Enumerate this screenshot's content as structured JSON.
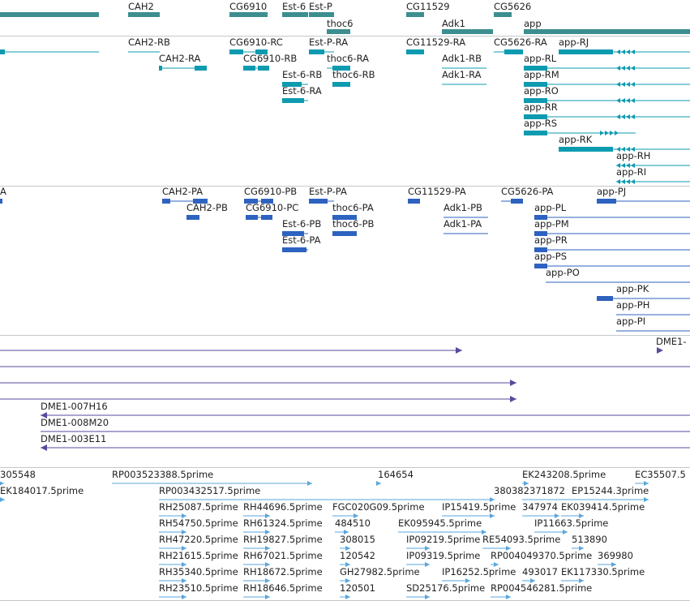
{
  "colors": {
    "gene": "#3d8e8e",
    "transcript": "#0e9bb0",
    "cds": "#2d62c0",
    "clone": "#5a4a9c",
    "est": "#5aa6dc",
    "separator": "#c4c8cc"
  },
  "tracks": {
    "genes": {
      "labels": [
        "CAH2",
        "CG6910",
        "Est-6",
        "Est-P",
        "thoc6",
        "CG11529",
        "Adk1",
        "CG5626",
        "app"
      ]
    },
    "transcripts": {
      "labels": [
        "CAH2-RB",
        "CG6910-RC",
        "Est-P-RA",
        "CG11529-RA",
        "CG5626-RA",
        "app-RJ",
        "CAH2-RA",
        "CG6910-RB",
        "thoc6-RA",
        "Adk1-RB",
        "app-RL",
        "Est-6-RB",
        "thoc6-RB",
        "Adk1-RA",
        "app-RM",
        "Est-6-RA",
        "app-RO",
        "app-RR",
        "app-RS",
        "app-RK",
        "app-RH",
        "app-RI"
      ]
    },
    "proteins": {
      "labels": [
        "A",
        "CAH2-PA",
        "CG6910-PB",
        "Est-P-PA",
        "CG11529-PA",
        "CG5626-PA",
        "app-PJ",
        "CAH2-PB",
        "CG6910-PC",
        "thoc6-PA",
        "Adk1-PB",
        "app-PL",
        "Est-6-PB",
        "thoc6-PB",
        "Adk1-PA",
        "app-PM",
        "Est-6-PA",
        "app-PR",
        "app-PS",
        "app-PO",
        "app-PK",
        "app-PH",
        "app-PI"
      ]
    },
    "clones": {
      "labels": [
        "DME1-",
        "DME1-007H16",
        "DME1-008M20",
        "DME1-003E11"
      ]
    },
    "ests": {
      "labels": [
        "305548",
        "RP003523388.5prime",
        "164654",
        "EK243208.5prime",
        "EC35507.5",
        "EK184017.5prime",
        "RP003432517.5prime",
        "380382",
        "371872",
        "EP15244.3prime",
        "RH25087.5prime",
        "RH44696.5prime",
        "FGC020G09.5prime",
        "IP15419.5prime",
        "347974",
        "EK039414.5prime",
        "RH54750.5prime",
        "RH61324.5prime",
        "484510",
        "EK095945.5prime",
        "IP11663.5prime",
        "RH47220.5prime",
        "RH19827.5prime",
        "308015",
        "IP09219.5prime",
        "RE54093.5prime",
        "513890",
        "RH21615.5prime",
        "RH67021.5prime",
        "120542",
        "IP09319.5prime",
        "RP004049370.5prime",
        "369980",
        "RH35340.5prime",
        "RH18672.5prime",
        "GH27982.5prime",
        "IP16252.5prime",
        "493017",
        "EK117330.5prime",
        "RH23510.5prime",
        "RH18646.5prime",
        "120501",
        "SD25176.5prime",
        "RP004546281.5prime"
      ]
    }
  }
}
